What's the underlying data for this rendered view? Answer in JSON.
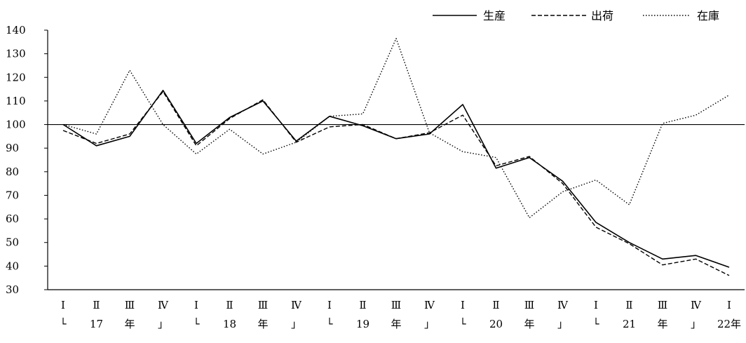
{
  "chart_data": {
    "type": "line",
    "title": "",
    "xlabel": "",
    "ylabel": "",
    "ylim": [
      30,
      140
    ],
    "yticks": [
      30,
      40,
      50,
      60,
      70,
      80,
      90,
      100,
      110,
      120,
      130,
      140
    ],
    "grid": false,
    "legend_position": "top-right",
    "reference_line": 100,
    "categories": [
      "Ⅰ",
      "Ⅱ",
      "Ⅲ",
      "Ⅳ",
      "Ⅰ",
      "Ⅱ",
      "Ⅲ",
      "Ⅳ",
      "Ⅰ",
      "Ⅱ",
      "Ⅲ",
      "Ⅳ",
      "Ⅰ",
      "Ⅱ",
      "Ⅲ",
      "Ⅳ",
      "Ⅰ",
      "Ⅱ",
      "Ⅲ",
      "Ⅳ",
      "Ⅰ"
    ],
    "year_row": [
      "└",
      "17",
      "年",
      "」",
      "└",
      "18",
      "年",
      "」",
      "└",
      "19",
      "年",
      "」",
      "└",
      "20",
      "年",
      "」",
      "└",
      "21",
      "年",
      "」",
      "22年"
    ],
    "series": [
      {
        "name": "生産",
        "style": "solid",
        "color": "#000000",
        "values": [
          100,
          91,
          95,
          114.5,
          92,
          103,
          110,
          93,
          103.5,
          99.5,
          94,
          96,
          108.5,
          81.5,
          86,
          76,
          58.5,
          50,
          43,
          44.5,
          39.5
        ]
      },
      {
        "name": "出荷",
        "style": "dashed",
        "color": "#000000",
        "values": [
          97.5,
          92,
          96,
          114,
          91,
          102.5,
          110.5,
          92.5,
          99,
          100,
          94,
          96.5,
          104,
          82.5,
          86.5,
          75,
          56.5,
          49.5,
          40.5,
          43,
          36
        ]
      },
      {
        "name": "在庫",
        "style": "dotted",
        "color": "#000000",
        "values": [
          100,
          96,
          123,
          100,
          87.5,
          98,
          87.5,
          92.5,
          103.5,
          104.5,
          136.5,
          96.5,
          88.5,
          86,
          60.5,
          71.5,
          76.5,
          66,
          100.5,
          104,
          112.5
        ]
      }
    ]
  }
}
